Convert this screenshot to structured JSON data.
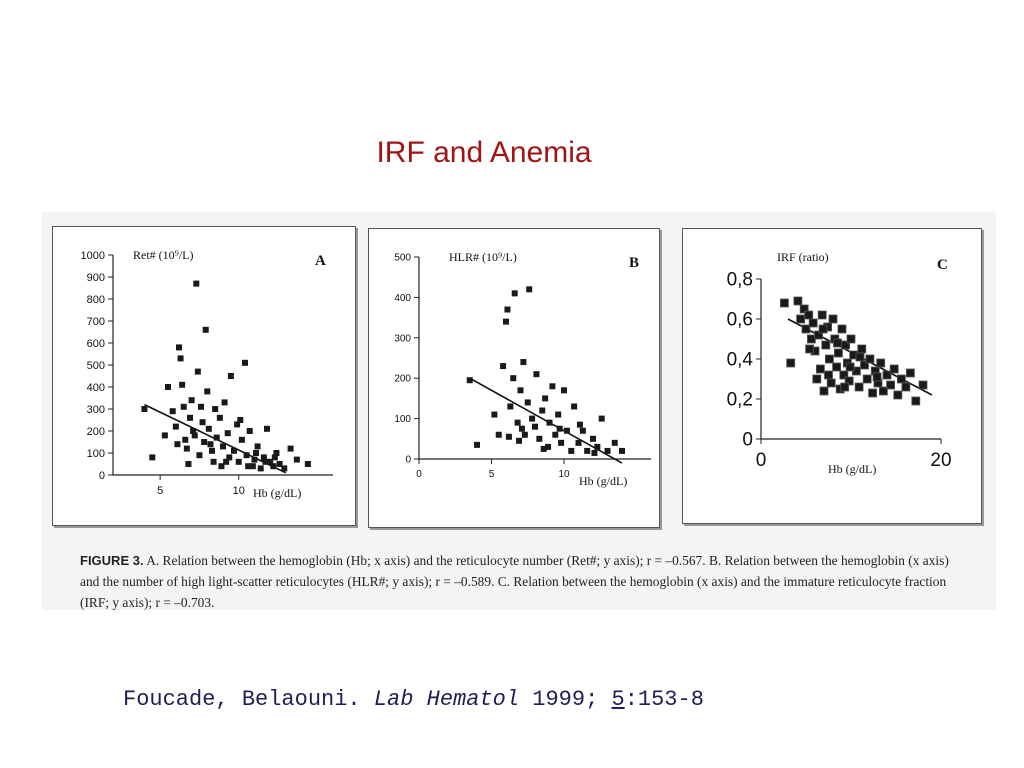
{
  "title": "IRF and Anemia",
  "caption": {
    "label": "FIGURE 3.",
    "text": "A. Relation between the hemoglobin (Hb; x axis) and the reticulocyte number (Ret#; y axis); r = –0.567. B. Relation between the hemoglobin (x axis) and the number of high light-scatter reticulocytes (HLR#; y axis); r = –0.589. C. Relation between the hemoglobin (x axis) and the immature reticulocyte fraction (IRF; y axis); r = –0.703."
  },
  "citation": {
    "authors": "Foucade, Belaouni.",
    "journal": "Lab Hematol",
    "year": "1999;",
    "volume": "5",
    "pages": ":153-8"
  },
  "chart_data": [
    {
      "type": "scatter",
      "panel": "A",
      "ylabel": "Ret# (10⁹/L)",
      "xlabel": "Hb (g/dL)",
      "xlim": [
        2,
        16
      ],
      "ylim": [
        0,
        1000
      ],
      "xticks": [
        "5",
        "10"
      ],
      "yticks": [
        "0",
        "100",
        "200",
        "300",
        "400",
        "500",
        "600",
        "700",
        "800",
        "900",
        "1000"
      ],
      "correlation": "r = -0.567",
      "trendline": {
        "x": [
          4,
          13
        ],
        "y": [
          320,
          10
        ]
      },
      "points": [
        {
          "x": 4,
          "y": 300
        },
        {
          "x": 4.5,
          "y": 80
        },
        {
          "x": 5.3,
          "y": 180
        },
        {
          "x": 5.5,
          "y": 400
        },
        {
          "x": 5.8,
          "y": 290
        },
        {
          "x": 6,
          "y": 220
        },
        {
          "x": 6.2,
          "y": 580
        },
        {
          "x": 6.3,
          "y": 530
        },
        {
          "x": 6.4,
          "y": 410
        },
        {
          "x": 6.5,
          "y": 310
        },
        {
          "x": 6.6,
          "y": 160
        },
        {
          "x": 6.7,
          "y": 120
        },
        {
          "x": 6.9,
          "y": 260
        },
        {
          "x": 7,
          "y": 340
        },
        {
          "x": 7.1,
          "y": 200
        },
        {
          "x": 7.3,
          "y": 870
        },
        {
          "x": 7.4,
          "y": 470
        },
        {
          "x": 7.5,
          "y": 90
        },
        {
          "x": 7.7,
          "y": 240
        },
        {
          "x": 7.8,
          "y": 150
        },
        {
          "x": 7.9,
          "y": 660
        },
        {
          "x": 8,
          "y": 380
        },
        {
          "x": 8.1,
          "y": 210
        },
        {
          "x": 8.3,
          "y": 110
        },
        {
          "x": 8.4,
          "y": 60
        },
        {
          "x": 8.5,
          "y": 300
        },
        {
          "x": 8.6,
          "y": 170
        },
        {
          "x": 8.8,
          "y": 260
        },
        {
          "x": 8.9,
          "y": 40
        },
        {
          "x": 9,
          "y": 130
        },
        {
          "x": 9.1,
          "y": 330
        },
        {
          "x": 9.3,
          "y": 190
        },
        {
          "x": 9.4,
          "y": 80
        },
        {
          "x": 9.5,
          "y": 450
        },
        {
          "x": 9.7,
          "y": 110
        },
        {
          "x": 9.9,
          "y": 230
        },
        {
          "x": 10,
          "y": 60
        },
        {
          "x": 10.2,
          "y": 160
        },
        {
          "x": 10.4,
          "y": 510
        },
        {
          "x": 10.5,
          "y": 90
        },
        {
          "x": 10.7,
          "y": 200
        },
        {
          "x": 10.9,
          "y": 40
        },
        {
          "x": 11,
          "y": 70
        },
        {
          "x": 11.2,
          "y": 130
        },
        {
          "x": 11.4,
          "y": 30
        },
        {
          "x": 11.6,
          "y": 80
        },
        {
          "x": 11.8,
          "y": 210
        },
        {
          "x": 12,
          "y": 60
        },
        {
          "x": 12.2,
          "y": 40
        },
        {
          "x": 12.4,
          "y": 100
        },
        {
          "x": 12.6,
          "y": 50
        },
        {
          "x": 12.9,
          "y": 30
        },
        {
          "x": 13.3,
          "y": 120
        },
        {
          "x": 13.7,
          "y": 70
        },
        {
          "x": 14.4,
          "y": 50
        },
        {
          "x": 6.8,
          "y": 50
        },
        {
          "x": 7.6,
          "y": 310
        },
        {
          "x": 8.2,
          "y": 140
        },
        {
          "x": 9.2,
          "y": 60
        },
        {
          "x": 10.1,
          "y": 250
        },
        {
          "x": 10.6,
          "y": 40
        },
        {
          "x": 11.1,
          "y": 100
        },
        {
          "x": 11.7,
          "y": 60
        },
        {
          "x": 12.3,
          "y": 80
        },
        {
          "x": 6.1,
          "y": 140
        },
        {
          "x": 7.2,
          "y": 180
        }
      ]
    },
    {
      "type": "scatter",
      "panel": "B",
      "ylabel": "HLR# (10⁹/L)",
      "xlabel": "Hb (g/dL)",
      "xlim": [
        0,
        16
      ],
      "ylim": [
        0,
        500
      ],
      "xticks": [
        "0",
        "5",
        "10"
      ],
      "yticks": [
        "0",
        "100",
        "200",
        "300",
        "400",
        "500"
      ],
      "correlation": "r = -0.589",
      "trendline": {
        "x": [
          3.5,
          14
        ],
        "y": [
          200,
          -10
        ]
      },
      "points": [
        {
          "x": 3.5,
          "y": 195
        },
        {
          "x": 4,
          "y": 35
        },
        {
          "x": 5.2,
          "y": 110
        },
        {
          "x": 5.5,
          "y": 60
        },
        {
          "x": 5.8,
          "y": 230
        },
        {
          "x": 6,
          "y": 340
        },
        {
          "x": 6.1,
          "y": 370
        },
        {
          "x": 6.3,
          "y": 130
        },
        {
          "x": 6.5,
          "y": 200
        },
        {
          "x": 6.6,
          "y": 410
        },
        {
          "x": 6.8,
          "y": 90
        },
        {
          "x": 7,
          "y": 170
        },
        {
          "x": 7.2,
          "y": 240
        },
        {
          "x": 7.3,
          "y": 60
        },
        {
          "x": 7.5,
          "y": 140
        },
        {
          "x": 7.6,
          "y": 420
        },
        {
          "x": 7.8,
          "y": 100
        },
        {
          "x": 8,
          "y": 80
        },
        {
          "x": 8.1,
          "y": 210
        },
        {
          "x": 8.3,
          "y": 50
        },
        {
          "x": 8.5,
          "y": 120
        },
        {
          "x": 8.7,
          "y": 150
        },
        {
          "x": 8.9,
          "y": 30
        },
        {
          "x": 9,
          "y": 90
        },
        {
          "x": 9.2,
          "y": 180
        },
        {
          "x": 9.4,
          "y": 60
        },
        {
          "x": 9.6,
          "y": 110
        },
        {
          "x": 9.8,
          "y": 40
        },
        {
          "x": 10,
          "y": 170
        },
        {
          "x": 10.2,
          "y": 70
        },
        {
          "x": 10.5,
          "y": 20
        },
        {
          "x": 10.7,
          "y": 130
        },
        {
          "x": 11,
          "y": 40
        },
        {
          "x": 11.3,
          "y": 70
        },
        {
          "x": 11.6,
          "y": 20
        },
        {
          "x": 12,
          "y": 50
        },
        {
          "x": 12.3,
          "y": 30
        },
        {
          "x": 12.6,
          "y": 100
        },
        {
          "x": 13,
          "y": 20
        },
        {
          "x": 13.5,
          "y": 40
        },
        {
          "x": 14,
          "y": 20
        },
        {
          "x": 6.2,
          "y": 55
        },
        {
          "x": 7.1,
          "y": 75
        },
        {
          "x": 8.6,
          "y": 25
        },
        {
          "x": 9.7,
          "y": 75
        },
        {
          "x": 11.1,
          "y": 85
        },
        {
          "x": 12.1,
          "y": 15
        },
        {
          "x": 6.9,
          "y": 45
        }
      ]
    },
    {
      "type": "scatter",
      "panel": "C",
      "ylabel": "IRF (ratio)",
      "xlabel": "Hb (g/dL)",
      "xlim": [
        0,
        20
      ],
      "ylim": [
        0,
        0.8
      ],
      "xticks": [
        "0",
        "20"
      ],
      "yticks": [
        "0",
        "0,2",
        "0,4",
        "0,6",
        "0,8"
      ],
      "correlation": "r = -0.703",
      "trendline": {
        "x": [
          3,
          19
        ],
        "y": [
          0.6,
          0.22
        ]
      },
      "points": [
        {
          "x": 2.6,
          "y": 0.68
        },
        {
          "x": 3.3,
          "y": 0.38
        },
        {
          "x": 4.1,
          "y": 0.69
        },
        {
          "x": 4.4,
          "y": 0.6
        },
        {
          "x": 4.8,
          "y": 0.65
        },
        {
          "x": 5,
          "y": 0.55
        },
        {
          "x": 5.3,
          "y": 0.62
        },
        {
          "x": 5.6,
          "y": 0.5
        },
        {
          "x": 5.8,
          "y": 0.58
        },
        {
          "x": 6,
          "y": 0.44
        },
        {
          "x": 6.2,
          "y": 0.3
        },
        {
          "x": 6.4,
          "y": 0.52
        },
        {
          "x": 6.6,
          "y": 0.35
        },
        {
          "x": 6.8,
          "y": 0.62
        },
        {
          "x": 7,
          "y": 0.24
        },
        {
          "x": 7.2,
          "y": 0.47
        },
        {
          "x": 7.4,
          "y": 0.56
        },
        {
          "x": 7.6,
          "y": 0.4
        },
        {
          "x": 7.8,
          "y": 0.28
        },
        {
          "x": 8,
          "y": 0.6
        },
        {
          "x": 8.2,
          "y": 0.5
        },
        {
          "x": 8.4,
          "y": 0.36
        },
        {
          "x": 8.6,
          "y": 0.43
        },
        {
          "x": 8.8,
          "y": 0.25
        },
        {
          "x": 9,
          "y": 0.55
        },
        {
          "x": 9.2,
          "y": 0.32
        },
        {
          "x": 9.4,
          "y": 0.47
        },
        {
          "x": 9.6,
          "y": 0.38
        },
        {
          "x": 9.8,
          "y": 0.29
        },
        {
          "x": 10,
          "y": 0.5
        },
        {
          "x": 10.3,
          "y": 0.42
        },
        {
          "x": 10.6,
          "y": 0.34
        },
        {
          "x": 10.9,
          "y": 0.26
        },
        {
          "x": 11.2,
          "y": 0.45
        },
        {
          "x": 11.5,
          "y": 0.37
        },
        {
          "x": 11.8,
          "y": 0.3
        },
        {
          "x": 12.1,
          "y": 0.4
        },
        {
          "x": 12.4,
          "y": 0.23
        },
        {
          "x": 12.7,
          "y": 0.34
        },
        {
          "x": 13,
          "y": 0.28
        },
        {
          "x": 13.3,
          "y": 0.38
        },
        {
          "x": 13.6,
          "y": 0.24
        },
        {
          "x": 14,
          "y": 0.32
        },
        {
          "x": 14.4,
          "y": 0.27
        },
        {
          "x": 14.8,
          "y": 0.35
        },
        {
          "x": 15.2,
          "y": 0.22
        },
        {
          "x": 15.6,
          "y": 0.3
        },
        {
          "x": 16.1,
          "y": 0.26
        },
        {
          "x": 16.6,
          "y": 0.33
        },
        {
          "x": 17.2,
          "y": 0.19
        },
        {
          "x": 18,
          "y": 0.27
        },
        {
          "x": 5.4,
          "y": 0.45
        },
        {
          "x": 6.9,
          "y": 0.55
        },
        {
          "x": 8.5,
          "y": 0.48
        },
        {
          "x": 9.9,
          "y": 0.36
        },
        {
          "x": 11,
          "y": 0.41
        },
        {
          "x": 12.9,
          "y": 0.31
        },
        {
          "x": 7.5,
          "y": 0.32
        },
        {
          "x": 9.3,
          "y": 0.26
        }
      ]
    }
  ]
}
